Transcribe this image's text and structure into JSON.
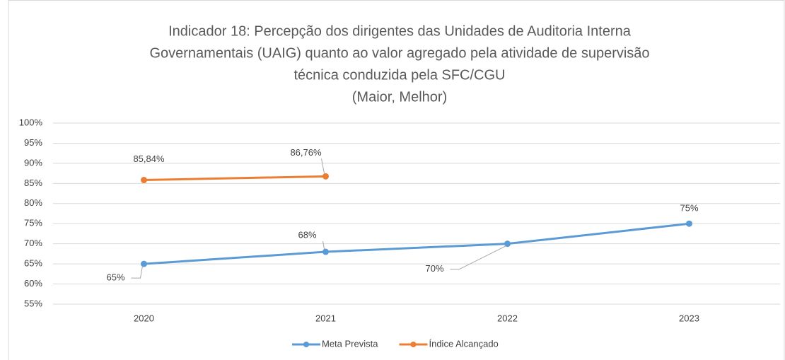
{
  "chart_data": {
    "type": "line",
    "title": [
      "Indicador 18: Percepção dos dirigentes das Unidades de Auditoria Interna",
      "Governamentais (UAIG) quanto ao valor agregado pela atividade de supervisão",
      "técnica conduzida pela SFC/CGU"
    ],
    "subtitle": "(Maior, Melhor)",
    "categories": [
      "2020",
      "2021",
      "2022",
      "2023"
    ],
    "series": [
      {
        "name": "Meta Prevista",
        "color": "#5b9bd5",
        "values": [
          65,
          68,
          70,
          75
        ],
        "value_labels": [
          "65%",
          "68%",
          "70%",
          "75%"
        ]
      },
      {
        "name": "Índice Alcançado",
        "color": "#ed7d31",
        "values": [
          85.84,
          86.76,
          null,
          null
        ],
        "value_labels": [
          "85,84%",
          "86,76%",
          null,
          null
        ]
      }
    ],
    "ylim": [
      55,
      100
    ],
    "yticks": [
      {
        "value": 55,
        "label": "55%"
      },
      {
        "value": 60,
        "label": "60%"
      },
      {
        "value": 65,
        "label": "65%"
      },
      {
        "value": 70,
        "label": "70%"
      },
      {
        "value": 75,
        "label": "75%"
      },
      {
        "value": 80,
        "label": "80%"
      },
      {
        "value": 85,
        "label": "85%"
      },
      {
        "value": 90,
        "label": "90%"
      },
      {
        "value": 95,
        "label": "95%"
      },
      {
        "value": 100,
        "label": "100%"
      }
    ],
    "grid": true,
    "legend": "bottom"
  }
}
